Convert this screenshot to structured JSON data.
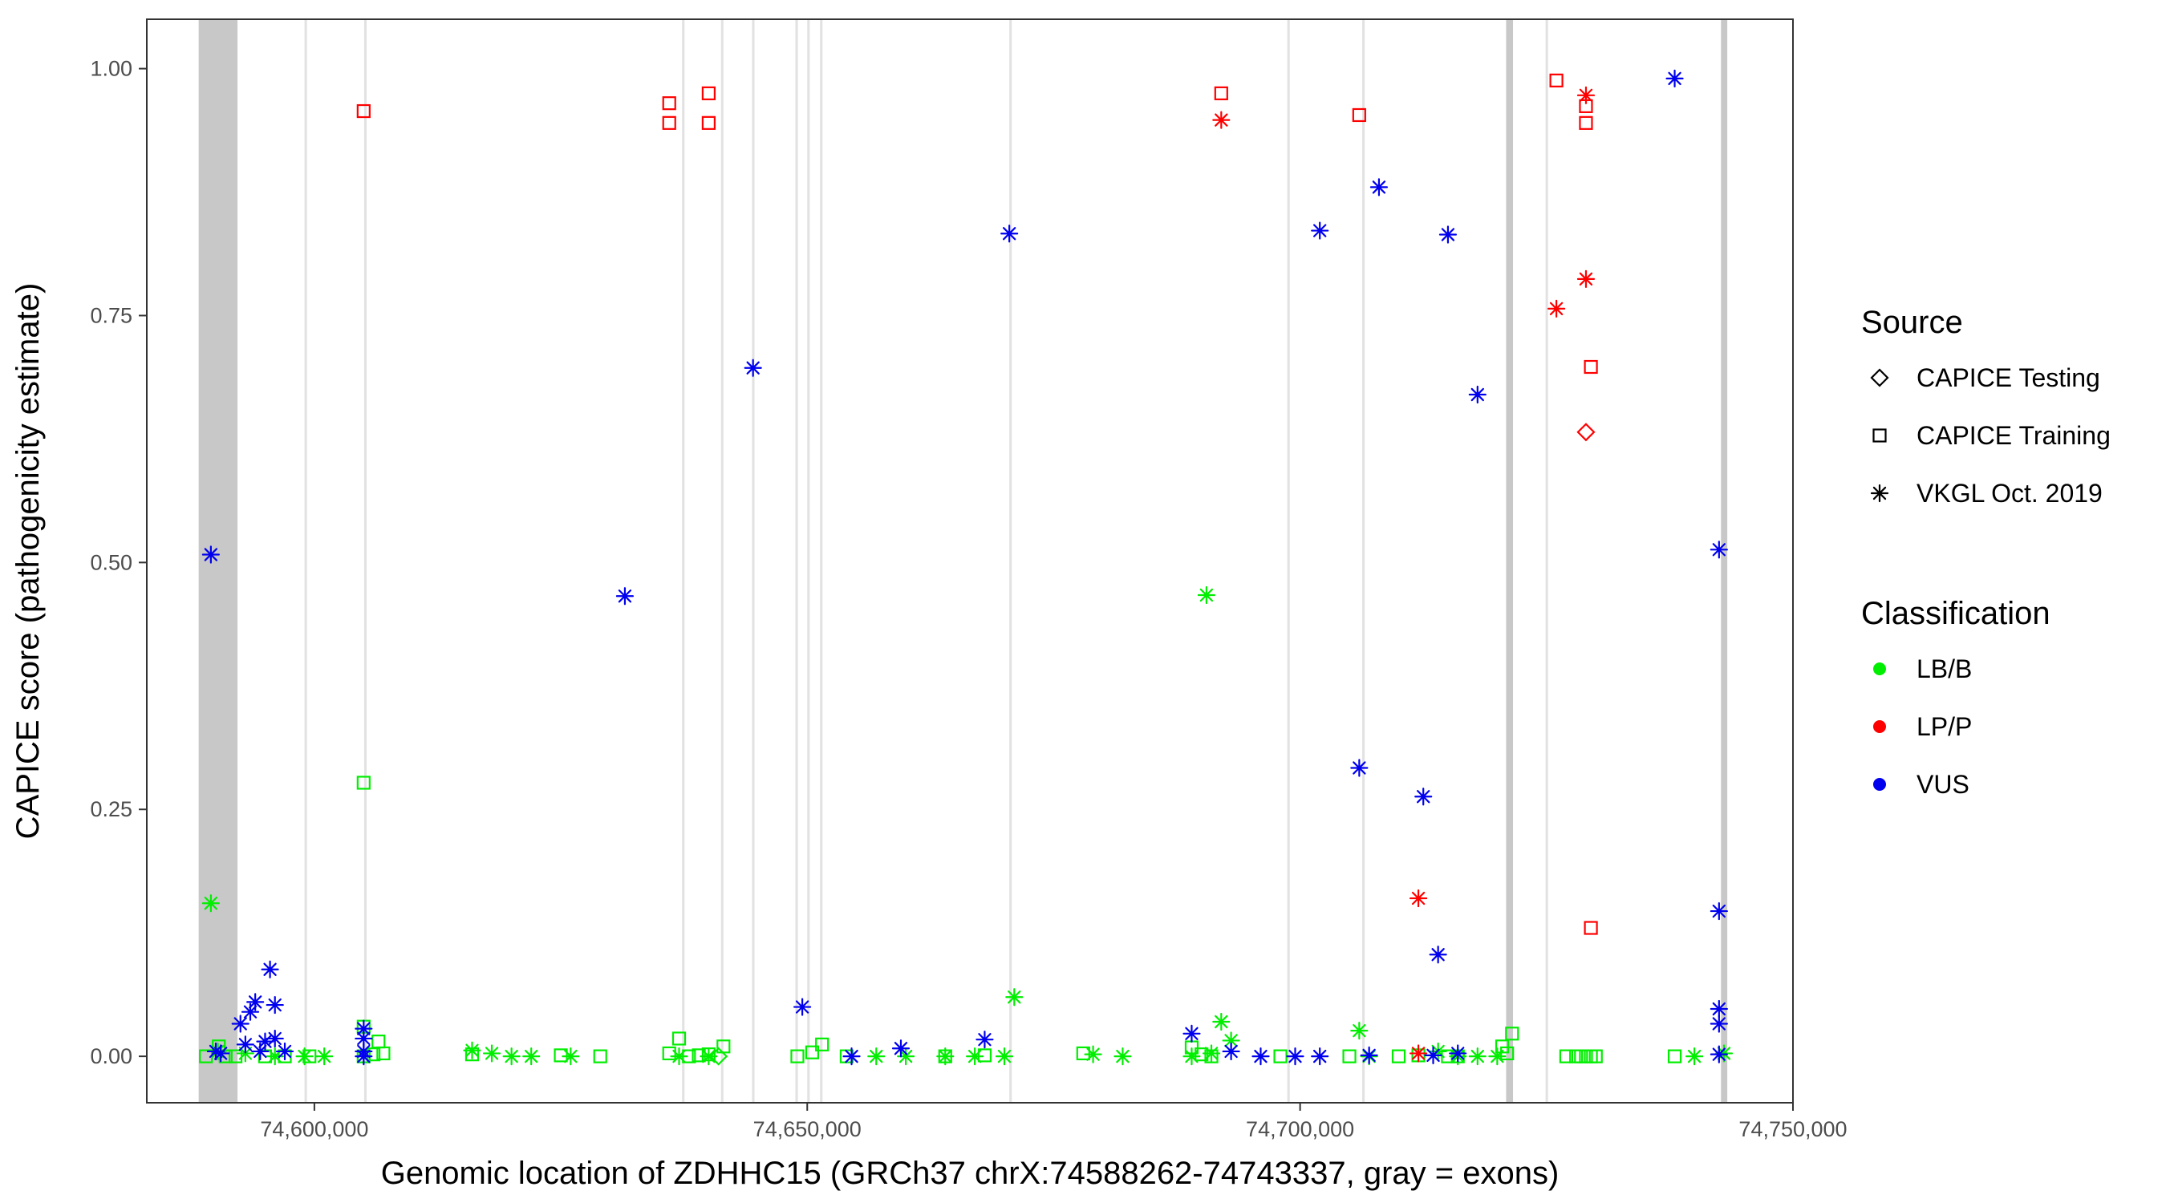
{
  "chart_data": {
    "type": "scatter",
    "xlabel": "Genomic location of ZDHHC15 (GRCh37 chrX:74588262-74743337, gray = exons)",
    "ylabel": "CAPICE score (pathogenicity estimate)",
    "xlim": [
      74583000,
      74750000
    ],
    "ylim": [
      -0.047,
      1.05
    ],
    "x_ticks": [
      {
        "value": 74600000,
        "label": "74,600,000"
      },
      {
        "value": 74650000,
        "label": "74,650,000"
      },
      {
        "value": 74700000,
        "label": "74,700,000"
      },
      {
        "value": 74750000,
        "label": "74,750,000"
      }
    ],
    "y_ticks": [
      {
        "value": 0.0,
        "label": "0.00"
      },
      {
        "value": 0.25,
        "label": "0.25"
      },
      {
        "value": 0.5,
        "label": "0.50"
      },
      {
        "value": 0.75,
        "label": "0.75"
      },
      {
        "value": 1.0,
        "label": "1.00"
      }
    ],
    "grid": false,
    "exons": [
      {
        "start": 74588262,
        "end": 74592200
      },
      {
        "start": 74599000,
        "end": 74599250
      },
      {
        "start": 74605050,
        "end": 74605300
      },
      {
        "start": 74637300,
        "end": 74637550
      },
      {
        "start": 74641250,
        "end": 74641500
      },
      {
        "start": 74644400,
        "end": 74644650
      },
      {
        "start": 74648800,
        "end": 74649050
      },
      {
        "start": 74650000,
        "end": 74650250
      },
      {
        "start": 74651300,
        "end": 74651550
      },
      {
        "start": 74670500,
        "end": 74670750
      },
      {
        "start": 74698700,
        "end": 74698950
      },
      {
        "start": 74706300,
        "end": 74706550
      },
      {
        "start": 74720900,
        "end": 74721600
      },
      {
        "start": 74724900,
        "end": 74725150
      },
      {
        "start": 74742700,
        "end": 74743337
      }
    ],
    "legend": {
      "position": "right",
      "source_title": "Source",
      "source_items": [
        {
          "label": "CAPICE Testing",
          "shape": "diamond"
        },
        {
          "label": "CAPICE Training",
          "shape": "square"
        },
        {
          "label": "VKGL Oct. 2019",
          "shape": "asterisk"
        }
      ],
      "class_title": "Classification",
      "class_items": [
        {
          "label": "LB/B",
          "color": "#00ee00"
        },
        {
          "label": "LP/P",
          "color": "#ff0000"
        },
        {
          "label": "VUS",
          "color": "#0000ee"
        }
      ]
    },
    "series": [
      {
        "name": "LB/B CAPICE Training",
        "source": "square",
        "color": "#00ee00",
        "points": [
          [
            74589000,
            0
          ],
          [
            74590300,
            0.01
          ],
          [
            74591000,
            0
          ],
          [
            74592000,
            0
          ],
          [
            74595000,
            0
          ],
          [
            74597000,
            0
          ],
          [
            74599500,
            0
          ],
          [
            74605000,
            0.277
          ],
          [
            74605000,
            0.03
          ],
          [
            74605000,
            0
          ],
          [
            74606000,
            0.002
          ],
          [
            74606500,
            0.015
          ],
          [
            74607000,
            0.003
          ],
          [
            74616000,
            0.002
          ],
          [
            74625000,
            0.001
          ],
          [
            74629000,
            0
          ],
          [
            74636000,
            0.003
          ],
          [
            74637000,
            0.018
          ],
          [
            74638000,
            0
          ],
          [
            74639000,
            0.001
          ],
          [
            74640000,
            0.002
          ],
          [
            74641500,
            0.01
          ],
          [
            74649000,
            0
          ],
          [
            74650500,
            0.004
          ],
          [
            74651500,
            0.012
          ],
          [
            74654000,
            0
          ],
          [
            74664000,
            0
          ],
          [
            74668000,
            0.001
          ],
          [
            74678000,
            0.003
          ],
          [
            74689000,
            0.009
          ],
          [
            74690000,
            0.002
          ],
          [
            74691000,
            0
          ],
          [
            74698000,
            0
          ],
          [
            74705000,
            0
          ],
          [
            74710000,
            0
          ],
          [
            74712000,
            0.001
          ],
          [
            74715000,
            0
          ],
          [
            74716000,
            0
          ],
          [
            74720500,
            0.01
          ],
          [
            74721000,
            0.003
          ],
          [
            74721500,
            0.023
          ],
          [
            74727000,
            0
          ],
          [
            74728000,
            0
          ],
          [
            74728500,
            0
          ],
          [
            74729000,
            0
          ],
          [
            74729500,
            0
          ],
          [
            74730000,
            0
          ],
          [
            74738000,
            0
          ]
        ]
      },
      {
        "name": "LB/B VKGL Oct. 2019",
        "source": "asterisk",
        "color": "#00ee00",
        "points": [
          [
            74589500,
            0.155
          ],
          [
            74590200,
            0.005
          ],
          [
            74593000,
            0.003
          ],
          [
            74596000,
            0
          ],
          [
            74599000,
            0
          ],
          [
            74601000,
            0
          ],
          [
            74616000,
            0.006
          ],
          [
            74618000,
            0.003
          ],
          [
            74620000,
            0
          ],
          [
            74622000,
            0
          ],
          [
            74626000,
            0
          ],
          [
            74637000,
            0
          ],
          [
            74640000,
            0
          ],
          [
            74657000,
            0
          ],
          [
            74660000,
            0
          ],
          [
            74664000,
            0
          ],
          [
            74667000,
            0
          ],
          [
            74670000,
            0
          ],
          [
            74671000,
            0.06
          ],
          [
            74679000,
            0.002
          ],
          [
            74682000,
            0
          ],
          [
            74689000,
            0
          ],
          [
            74690500,
            0.467
          ],
          [
            74691000,
            0.003
          ],
          [
            74692000,
            0.035
          ],
          [
            74693000,
            0.016
          ],
          [
            74706000,
            0.026
          ],
          [
            74707000,
            0
          ],
          [
            74714000,
            0.005
          ],
          [
            74716000,
            0
          ],
          [
            74718000,
            0
          ],
          [
            74720000,
            0
          ],
          [
            74740000,
            0
          ],
          [
            74743000,
            0.003
          ]
        ]
      },
      {
        "name": "LB/B CAPICE Testing",
        "source": "diamond",
        "color": "#00ee00",
        "points": [
          [
            74641000,
            0
          ]
        ]
      },
      {
        "name": "LP/P CAPICE Training",
        "source": "square",
        "color": "#ff0000",
        "points": [
          [
            74605000,
            0.957
          ],
          [
            74636000,
            0.965
          ],
          [
            74636000,
            0.945
          ],
          [
            74640000,
            0.975
          ],
          [
            74640000,
            0.945
          ],
          [
            74692000,
            0.975
          ],
          [
            74706000,
            0.953
          ],
          [
            74726000,
            0.988
          ],
          [
            74729000,
            0.962
          ],
          [
            74729000,
            0.945
          ],
          [
            74729500,
            0.698
          ],
          [
            74729500,
            0.13
          ]
        ]
      },
      {
        "name": "LP/P VKGL Oct. 2019",
        "source": "asterisk",
        "color": "#ff0000",
        "points": [
          [
            74692000,
            0.948
          ],
          [
            74712000,
            0.16
          ],
          [
            74712000,
            0.003
          ],
          [
            74726000,
            0.757
          ],
          [
            74729000,
            0.787
          ],
          [
            74729000,
            0.973
          ]
        ]
      },
      {
        "name": "LP/P CAPICE Testing",
        "source": "diamond",
        "color": "#ff0000",
        "points": [
          [
            74729000,
            0.632
          ]
        ]
      },
      {
        "name": "VUS VKGL Oct. 2019",
        "source": "asterisk",
        "color": "#0000ee",
        "points": [
          [
            74589500,
            0.508
          ],
          [
            74590000,
            0.005
          ],
          [
            74590500,
            0.003
          ],
          [
            74592500,
            0.033
          ],
          [
            74593000,
            0.012
          ],
          [
            74593500,
            0.045
          ],
          [
            74594000,
            0.055
          ],
          [
            74594500,
            0.005
          ],
          [
            74595000,
            0.015
          ],
          [
            74595500,
            0.088
          ],
          [
            74596000,
            0.052
          ],
          [
            74596000,
            0.018
          ],
          [
            74597000,
            0.005
          ],
          [
            74605000,
            0.028
          ],
          [
            74605000,
            0.018
          ],
          [
            74605000,
            0.005
          ],
          [
            74605000,
            0
          ],
          [
            74631500,
            0.466
          ],
          [
            74644500,
            0.697
          ],
          [
            74649500,
            0.05
          ],
          [
            74654500,
            0
          ],
          [
            74659500,
            0.008
          ],
          [
            74668000,
            0.017
          ],
          [
            74670500,
            0.833
          ],
          [
            74689000,
            0.023
          ],
          [
            74693000,
            0.005
          ],
          [
            74696000,
            0
          ],
          [
            74699500,
            0
          ],
          [
            74702000,
            0.836
          ],
          [
            74702000,
            0
          ],
          [
            74706000,
            0.292
          ],
          [
            74707000,
            0.001
          ],
          [
            74708000,
            0.88
          ],
          [
            74712500,
            0.263
          ],
          [
            74713500,
            0.001
          ],
          [
            74714000,
            0.103
          ],
          [
            74715000,
            0.832
          ],
          [
            74716000,
            0.003
          ],
          [
            74718000,
            0.67
          ],
          [
            74738000,
            0.99
          ],
          [
            74742500,
            0.513
          ],
          [
            74742500,
            0.147
          ],
          [
            74742500,
            0.048
          ],
          [
            74742500,
            0.033
          ],
          [
            74742500,
            0.002
          ]
        ]
      }
    ]
  }
}
